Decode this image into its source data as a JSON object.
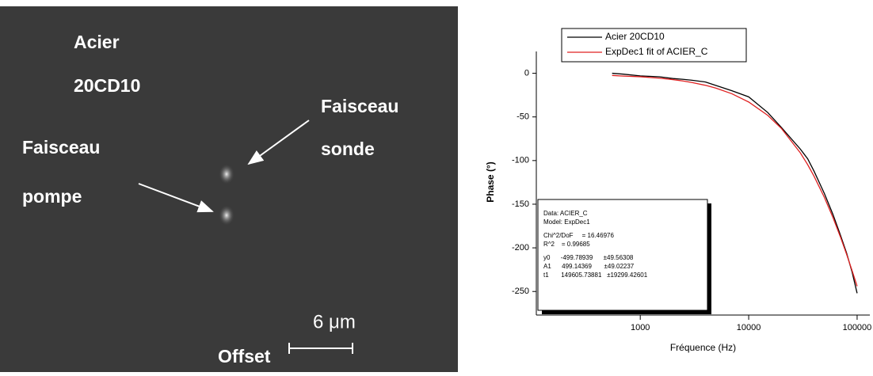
{
  "image_panel": {
    "labels": [
      "Acier",
      "20CD10",
      "Faisceau",
      "sonde",
      "Faisceau",
      "pompe",
      "6 μm",
      "Offset"
    ]
  },
  "chart_data": {
    "type": "line",
    "x_label": "Fréquence (Hz)",
    "y_label": "Phase (°)",
    "x": [
      550,
      700,
      1000,
      1500,
      2000,
      2500,
      3000,
      4000,
      5000,
      7000,
      10000,
      15000,
      20000,
      30000,
      35000,
      40000,
      50000,
      60000,
      70000,
      80000,
      90000,
      100000
    ],
    "series": [
      {
        "name": "Acier 20CD10",
        "color": "#000000",
        "values": [
          0,
          -1,
          -3,
          -4,
          -6,
          -7,
          -8,
          -10,
          -14,
          -20,
          -27,
          -45,
          -62,
          -87,
          -98,
          -112,
          -138,
          -162,
          -185,
          -206,
          -228,
          -252
        ]
      },
      {
        "name": "ExpDec1 fit of ACIER_C",
        "color": "#e02020",
        "values": [
          -2.48,
          -3.2,
          -3.97,
          -5.6,
          -7.27,
          -8.9,
          -10.56,
          -13.8,
          -17.05,
          -23.46,
          -32.92,
          -48.26,
          -63.1,
          -91.34,
          -104.7,
          -117.75,
          -142.45,
          -165.53,
          -187.18,
          -207.39,
          -226.3,
          -243.97
        ]
      }
    ],
    "xlog": true,
    "xlim": [
      110,
      131000
    ],
    "xticks": [
      1000,
      10000,
      100000
    ],
    "ylim": [
      -277,
      25
    ],
    "yticks": [
      0,
      -50,
      -100,
      -150,
      -200,
      -250
    ],
    "legend": "top-left",
    "annotation": [
      "Data: ACIER_C",
      "Model: ExpDec1",
      "Chi^2/DoF     = 16.46976",
      "R^2    = 0.99685",
      "y0      -499.78939      ±49.56308",
      "A1      499.14369       ±49.02237",
      "t1       149605.73881   ±19299.42601"
    ]
  }
}
